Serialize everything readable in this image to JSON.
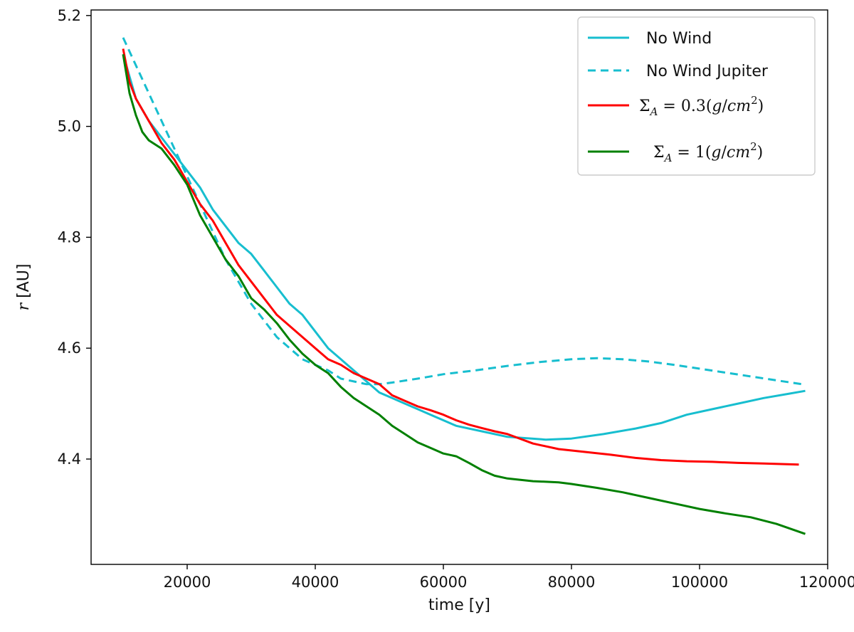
{
  "chart_data": {
    "type": "line",
    "xlabel": "time [y]",
    "ylabel_var": "r",
    "ylabel_unit": " [AU]",
    "xlim": [
      5000,
      120000
    ],
    "ylim": [
      4.21,
      5.21
    ],
    "xticks": [
      20000,
      40000,
      60000,
      80000,
      100000,
      120000
    ],
    "yticks": [
      4.4,
      4.6,
      4.8,
      5.0,
      5.2
    ],
    "xtick_labels": [
      "20000",
      "40000",
      "60000",
      "80000",
      "100000",
      "120000"
    ],
    "ytick_labels": [
      "4.4",
      "4.6",
      "4.8",
      "5.0",
      "5.2"
    ],
    "grid": false,
    "legend_position": "top-right",
    "series": [
      {
        "name": "No Wind",
        "legend": {
          "kind": "text",
          "text": "No Wind"
        },
        "color": "#17becf",
        "dash": "solid",
        "x": [
          10000,
          12000,
          14000,
          16000,
          18000,
          20000,
          22000,
          24000,
          26000,
          28000,
          30000,
          32000,
          34000,
          36000,
          38000,
          40000,
          42000,
          44000,
          46000,
          48000,
          50000,
          52000,
          54000,
          56000,
          58000,
          60000,
          62000,
          66000,
          70000,
          76000,
          80000,
          85000,
          90000,
          94000,
          98000,
          102000,
          106000,
          110000,
          114000,
          116500
        ],
        "y": [
          5.13,
          5.05,
          5.01,
          4.98,
          4.95,
          4.92,
          4.89,
          4.85,
          4.82,
          4.79,
          4.77,
          4.74,
          4.71,
          4.68,
          4.66,
          4.63,
          4.6,
          4.58,
          4.56,
          4.54,
          4.52,
          4.51,
          4.5,
          4.49,
          4.48,
          4.47,
          4.46,
          4.45,
          4.44,
          4.435,
          4.437,
          4.445,
          4.455,
          4.465,
          4.48,
          4.49,
          4.5,
          4.51,
          4.518,
          4.523
        ]
      },
      {
        "name": "No Wind Jupiter",
        "legend": {
          "kind": "text",
          "text": "No Wind Jupiter"
        },
        "color": "#17becf",
        "dash": "dashed",
        "x": [
          10000,
          12000,
          14000,
          16000,
          18000,
          20000,
          22000,
          24000,
          26000,
          28000,
          30000,
          32000,
          34000,
          36000,
          38000,
          40000,
          42000,
          44000,
          46000,
          48000,
          50000,
          52000,
          56000,
          60000,
          65000,
          70000,
          75000,
          80000,
          84000,
          88000,
          92000,
          96000,
          100000,
          104000,
          108000,
          112000,
          116000
        ],
        "y": [
          5.16,
          5.11,
          5.06,
          5.01,
          4.96,
          4.91,
          4.86,
          4.81,
          4.76,
          4.72,
          4.68,
          4.65,
          4.62,
          4.6,
          4.58,
          4.57,
          4.56,
          4.545,
          4.54,
          4.535,
          4.535,
          4.538,
          4.545,
          4.553,
          4.56,
          4.568,
          4.575,
          4.58,
          4.582,
          4.58,
          4.576,
          4.57,
          4.563,
          4.556,
          4.549,
          4.542,
          4.535
        ]
      },
      {
        "name": "Σ_A = 0.3(g/cm^2)",
        "legend": {
          "kind": "math",
          "sigma_sub": "A",
          "prefix": "= 0.3(",
          "var": "g",
          "slash": "/",
          "unit": "cm",
          "sup": "2",
          "suffix": ")"
        },
        "color": "#ff0000",
        "dash": "solid",
        "x": [
          10000,
          11000,
          12000,
          14000,
          16000,
          18000,
          20000,
          22000,
          24000,
          26000,
          28000,
          30000,
          32000,
          34000,
          36000,
          38000,
          40000,
          42000,
          44000,
          46000,
          48000,
          50000,
          52000,
          54000,
          56000,
          58000,
          60000,
          62000,
          64000,
          66000,
          68000,
          70000,
          74000,
          78000,
          82000,
          86000,
          90000,
          94000,
          98000,
          102000,
          106000,
          110000,
          115500
        ],
        "y": [
          5.14,
          5.08,
          5.05,
          5.01,
          4.97,
          4.94,
          4.9,
          4.86,
          4.83,
          4.79,
          4.75,
          4.72,
          4.69,
          4.66,
          4.64,
          4.62,
          4.6,
          4.58,
          4.57,
          4.555,
          4.545,
          4.535,
          4.515,
          4.505,
          4.495,
          4.488,
          4.48,
          4.47,
          4.462,
          4.456,
          4.45,
          4.445,
          4.428,
          4.418,
          4.413,
          4.408,
          4.402,
          4.398,
          4.396,
          4.395,
          4.393,
          4.392,
          4.39
        ]
      },
      {
        "name": "Σ_A = 1(g/cm^2)",
        "legend": {
          "kind": "math",
          "sigma_sub": "A",
          "prefix": "= 1(",
          "var": "g",
          "slash": "/",
          "unit": "cm",
          "sup": "2",
          "suffix": ")"
        },
        "color": "#008000",
        "dash": "solid",
        "x": [
          10000,
          11000,
          12000,
          13000,
          14000,
          16000,
          18000,
          20000,
          22000,
          24000,
          26000,
          28000,
          30000,
          32000,
          34000,
          36000,
          38000,
          40000,
          42000,
          44000,
          46000,
          48000,
          50000,
          52000,
          54000,
          56000,
          58000,
          60000,
          62000,
          64000,
          66000,
          68000,
          70000,
          74000,
          78000,
          80000,
          84000,
          88000,
          92000,
          96000,
          100000,
          104000,
          108000,
          112000,
          116500
        ],
        "y": [
          5.13,
          5.06,
          5.02,
          4.99,
          4.975,
          4.96,
          4.93,
          4.895,
          4.84,
          4.8,
          4.76,
          4.73,
          4.69,
          4.67,
          4.645,
          4.615,
          4.59,
          4.57,
          4.555,
          4.53,
          4.51,
          4.495,
          4.48,
          4.46,
          4.445,
          4.43,
          4.42,
          4.41,
          4.405,
          4.393,
          4.38,
          4.37,
          4.365,
          4.36,
          4.358,
          4.355,
          4.348,
          4.34,
          4.33,
          4.32,
          4.31,
          4.302,
          4.295,
          4.283,
          4.265
        ]
      }
    ]
  }
}
